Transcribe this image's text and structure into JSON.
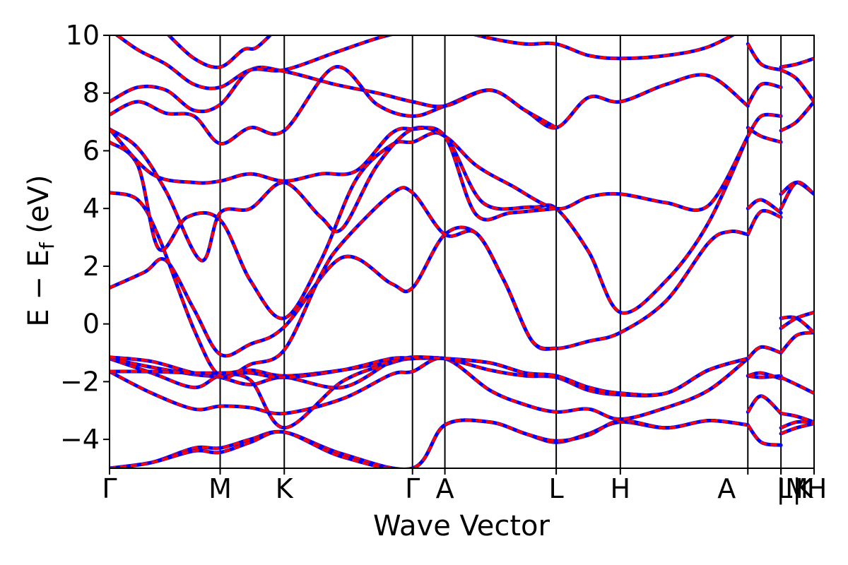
{
  "chart_data": {
    "type": "line",
    "xlabel": "Wave Vector",
    "ylabel_main": "E − E",
    "ylabel_sub": "f",
    "ylabel_unit": " (eV)",
    "ylim": [
      -5,
      10
    ],
    "yticks": [
      {
        "value": 10,
        "label": "10"
      },
      {
        "value": 8,
        "label": "8"
      },
      {
        "value": 6,
        "label": "6"
      },
      {
        "value": 4,
        "label": "4"
      },
      {
        "value": 2,
        "label": "2"
      },
      {
        "value": 0,
        "label": "0"
      },
      {
        "value": -2,
        "label": "−2"
      },
      {
        "value": -4,
        "label": "−4"
      }
    ],
    "xlim": [
      0,
      1000
    ],
    "kpoints": [
      {
        "x": 0,
        "label": "Γ"
      },
      {
        "x": 157,
        "label": "M"
      },
      {
        "x": 248,
        "label": "K"
      },
      {
        "x": 430,
        "label": "Γ"
      },
      {
        "x": 476,
        "label": "A"
      },
      {
        "x": 634,
        "label": "L"
      },
      {
        "x": 725,
        "label": "H"
      },
      {
        "x": 906,
        "label": "A"
      },
      {
        "x": 953,
        "label": "|M"
      },
      {
        "x": 953,
        "label": "L|"
      },
      {
        "x": 1000,
        "label": "K"
      },
      {
        "x": 1000,
        "label": "H"
      }
    ],
    "line_colors": {
      "series_a": "#ff0000",
      "series_b": "#0000ff",
      "frame": "#000000"
    },
    "bands": [
      [
        [
          0,
          -5.0
        ],
        [
          60,
          -4.8
        ],
        [
          120,
          -4.3
        ],
        [
          157,
          -4.3
        ],
        [
          200,
          -4.0
        ],
        [
          248,
          -3.75
        ],
        [
          330,
          -4.5
        ],
        [
          430,
          -5.0
        ],
        [
          476,
          -3.5
        ],
        [
          540,
          -3.4
        ],
        [
          590,
          -3.8
        ],
        [
          634,
          -4.1
        ],
        [
          680,
          -3.8
        ],
        [
          725,
          -3.4
        ],
        [
          790,
          -3.6
        ],
        [
          850,
          -3.35
        ],
        [
          906,
          -3.5
        ]
      ],
      [
        [
          0,
          -5.0
        ],
        [
          60,
          -4.8
        ],
        [
          120,
          -4.4
        ],
        [
          157,
          -4.45
        ],
        [
          200,
          -4.1
        ],
        [
          248,
          -3.75
        ],
        [
          330,
          -4.6
        ],
        [
          430,
          -5.0
        ],
        [
          476,
          -3.5
        ],
        [
          540,
          -3.4
        ],
        [
          590,
          -3.8
        ],
        [
          634,
          -4.05
        ],
        [
          680,
          -3.85
        ],
        [
          725,
          -3.35
        ],
        [
          790,
          -3.6
        ],
        [
          850,
          -3.35
        ],
        [
          906,
          -3.5
        ]
      ],
      [
        [
          0,
          -1.65
        ],
        [
          60,
          -2.4
        ],
        [
          120,
          -2.95
        ],
        [
          157,
          -2.85
        ],
        [
          200,
          -2.9
        ],
        [
          248,
          -3.1
        ],
        [
          330,
          -2.6
        ],
        [
          400,
          -1.75
        ],
        [
          430,
          -1.65
        ],
        [
          476,
          -1.2
        ],
        [
          540,
          -2.3
        ],
        [
          590,
          -2.8
        ],
        [
          634,
          -3.05
        ],
        [
          680,
          -2.95
        ],
        [
          725,
          -3.3
        ],
        [
          790,
          -2.9
        ],
        [
          850,
          -2.3
        ],
        [
          906,
          -1.2
        ]
      ],
      [
        [
          0,
          -1.2
        ],
        [
          60,
          -1.7
        ],
        [
          120,
          -2.2
        ],
        [
          157,
          -1.8
        ],
        [
          200,
          -1.95
        ],
        [
          248,
          -3.6
        ],
        [
          330,
          -2.0
        ],
        [
          400,
          -1.35
        ],
        [
          430,
          -1.2
        ],
        [
          476,
          -1.2
        ],
        [
          540,
          -1.6
        ],
        [
          590,
          -1.8
        ],
        [
          634,
          -1.85
        ],
        [
          680,
          -2.3
        ],
        [
          725,
          -2.45
        ],
        [
          790,
          -2.4
        ],
        [
          850,
          -1.6
        ],
        [
          906,
          -1.2
        ]
      ],
      [
        [
          0,
          -1.2
        ],
        [
          60,
          -1.5
        ],
        [
          120,
          -1.75
        ],
        [
          157,
          -1.85
        ],
        [
          200,
          -2.1
        ],
        [
          248,
          -1.85
        ],
        [
          330,
          -2.2
        ],
        [
          400,
          -1.3
        ],
        [
          430,
          -1.2
        ],
        [
          476,
          -1.2
        ],
        [
          540,
          -1.35
        ],
        [
          590,
          -1.7
        ],
        [
          634,
          -1.8
        ],
        [
          680,
          -2.2
        ],
        [
          725,
          -2.4
        ],
        [
          790,
          -2.4
        ],
        [
          850,
          -1.6
        ],
        [
          906,
          -1.2
        ]
      ],
      [
        [
          0,
          -1.15
        ],
        [
          60,
          -1.3
        ],
        [
          120,
          -1.7
        ],
        [
          157,
          -1.75
        ],
        [
          200,
          -1.6
        ],
        [
          248,
          -1.8
        ],
        [
          330,
          -1.6
        ],
        [
          400,
          -1.3
        ],
        [
          430,
          -1.15
        ],
        [
          476,
          -1.2
        ],
        [
          540,
          -1.35
        ],
        [
          590,
          -1.7
        ],
        [
          634,
          -1.8
        ],
        [
          680,
          -2.2
        ],
        [
          725,
          -2.4
        ],
        [
          790,
          -2.4
        ],
        [
          850,
          -1.6
        ],
        [
          906,
          -1.2
        ]
      ],
      [
        [
          0,
          -1.65
        ],
        [
          60,
          -1.65
        ],
        [
          120,
          -1.7
        ],
        [
          157,
          -1.7
        ],
        [
          200,
          -1.7
        ],
        [
          248,
          -1.85
        ],
        [
          330,
          -1.6
        ],
        [
          400,
          -1.2
        ],
        [
          430,
          -1.2
        ]
      ],
      [
        [
          0,
          1.25
        ],
        [
          50,
          1.8
        ],
        [
          80,
          2.2
        ],
        [
          120,
          0.5
        ],
        [
          157,
          -1.05
        ],
        [
          200,
          -0.7
        ],
        [
          248,
          -0.1
        ],
        [
          330,
          2.3
        ],
        [
          400,
          1.4
        ],
        [
          430,
          1.25
        ],
        [
          476,
          3.1
        ],
        [
          520,
          3.15
        ],
        [
          560,
          1.5
        ],
        [
          600,
          -0.6
        ],
        [
          634,
          -0.85
        ],
        [
          680,
          -0.6
        ],
        [
          725,
          -0.3
        ],
        [
          790,
          0.8
        ],
        [
          850,
          2.8
        ],
        [
          880,
          3.2
        ],
        [
          906,
          3.1
        ]
      ],
      [
        [
          0,
          4.55
        ],
        [
          40,
          4.3
        ],
        [
          70,
          3.0
        ],
        [
          120,
          -0.2
        ],
        [
          157,
          -1.8
        ],
        [
          200,
          -1.4
        ],
        [
          248,
          -0.9
        ],
        [
          300,
          1.7
        ],
        [
          330,
          2.8
        ],
        [
          400,
          4.5
        ],
        [
          430,
          4.55
        ],
        [
          476,
          3.1
        ],
        [
          520,
          3.15
        ],
        [
          560,
          1.5
        ],
        [
          600,
          -0.6
        ],
        [
          634,
          -0.85
        ]
      ],
      [
        [
          0,
          6.3
        ],
        [
          40,
          5.5
        ],
        [
          70,
          2.6
        ],
        [
          110,
          3.7
        ],
        [
          157,
          3.6
        ],
        [
          200,
          1.5
        ],
        [
          248,
          0.2
        ],
        [
          300,
          2.2
        ],
        [
          350,
          5.0
        ],
        [
          400,
          6.2
        ],
        [
          430,
          6.3
        ],
        [
          476,
          6.5
        ],
        [
          530,
          4.2
        ],
        [
          600,
          4.05
        ],
        [
          634,
          4.0
        ],
        [
          680,
          2.5
        ],
        [
          725,
          0.4
        ],
        [
          790,
          1.5
        ],
        [
          850,
          3.5
        ],
        [
          906,
          6.5
        ]
      ],
      [
        [
          0,
          6.75
        ],
        [
          40,
          6.1
        ],
        [
          80,
          4.6
        ],
        [
          130,
          2.2
        ],
        [
          157,
          3.85
        ],
        [
          200,
          4.0
        ],
        [
          248,
          4.9
        ],
        [
          300,
          3.7
        ],
        [
          330,
          3.3
        ],
        [
          380,
          5.5
        ],
        [
          430,
          6.75
        ],
        [
          476,
          6.5
        ],
        [
          520,
          5.5
        ],
        [
          570,
          4.8
        ],
        [
          634,
          4.0
        ],
        [
          680,
          4.4
        ],
        [
          725,
          4.5
        ],
        [
          790,
          4.2
        ],
        [
          850,
          4.1
        ],
        [
          906,
          6.5
        ]
      ],
      [
        [
          0,
          6.75
        ],
        [
          60,
          5.2
        ],
        [
          120,
          4.9
        ],
        [
          157,
          4.95
        ],
        [
          200,
          5.2
        ],
        [
          248,
          4.95
        ],
        [
          300,
          5.2
        ],
        [
          350,
          5.3
        ],
        [
          400,
          6.6
        ],
        [
          430,
          6.75
        ],
        [
          476,
          6.5
        ],
        [
          520,
          3.8
        ],
        [
          570,
          3.85
        ],
        [
          634,
          4.0
        ]
      ],
      [
        [
          0,
          7.25
        ],
        [
          40,
          7.7
        ],
        [
          80,
          7.3
        ],
        [
          120,
          7.2
        ],
        [
          157,
          6.25
        ],
        [
          200,
          6.8
        ],
        [
          248,
          6.7
        ],
        [
          320,
          8.9
        ],
        [
          380,
          7.6
        ],
        [
          430,
          7.2
        ],
        [
          476,
          7.55
        ],
        [
          540,
          8.1
        ],
        [
          590,
          7.4
        ],
        [
          634,
          6.8
        ],
        [
          680,
          7.85
        ],
        [
          725,
          7.7
        ],
        [
          790,
          8.3
        ],
        [
          850,
          8.6
        ],
        [
          906,
          7.55
        ]
      ],
      [
        [
          0,
          7.7
        ],
        [
          40,
          8.2
        ],
        [
          80,
          8.1
        ],
        [
          120,
          7.4
        ],
        [
          157,
          7.6
        ],
        [
          200,
          8.8
        ],
        [
          248,
          8.75
        ],
        [
          320,
          8.3
        ],
        [
          380,
          8.0
        ],
        [
          430,
          7.7
        ],
        [
          476,
          7.55
        ],
        [
          540,
          8.1
        ],
        [
          590,
          7.4
        ],
        [
          634,
          6.8
        ]
      ],
      [
        [
          0,
          10.2
        ],
        [
          40,
          9.5
        ],
        [
          80,
          9.0
        ],
        [
          120,
          8.3
        ],
        [
          157,
          8.2
        ],
        [
          200,
          8.8
        ],
        [
          248,
          8.8
        ],
        [
          320,
          9.4
        ],
        [
          380,
          9.9
        ],
        [
          430,
          10.2
        ]
      ],
      [
        [
          80,
          10.1
        ],
        [
          120,
          9.2
        ],
        [
          157,
          8.9
        ],
        [
          190,
          9.5
        ],
        [
          210,
          9.6
        ],
        [
          248,
          10.5
        ]
      ],
      [
        [
          476,
          10.3
        ],
        [
          540,
          9.9
        ],
        [
          590,
          9.7
        ],
        [
          634,
          9.7
        ],
        [
          680,
          9.3
        ],
        [
          725,
          9.2
        ],
        [
          790,
          9.3
        ],
        [
          850,
          9.6
        ],
        [
          906,
          10.3
        ]
      ],
      [
        [
          906,
          -3.5
        ],
        [
          925,
          -4.1
        ],
        [
          953,
          -4.2
        ]
      ],
      [
        [
          906,
          -3.05
        ],
        [
          925,
          -2.5
        ],
        [
          953,
          -3.1
        ]
      ],
      [
        [
          906,
          -1.8
        ],
        [
          925,
          -1.85
        ],
        [
          953,
          -1.8
        ]
      ],
      [
        [
          906,
          -1.2
        ],
        [
          925,
          -0.8
        ],
        [
          953,
          -1.0
        ]
      ],
      [
        [
          906,
          -1.8
        ],
        [
          925,
          -1.7
        ],
        [
          953,
          -1.9
        ]
      ],
      [
        [
          906,
          3.1
        ],
        [
          925,
          3.9
        ],
        [
          953,
          3.7
        ]
      ],
      [
        [
          906,
          4.0
        ],
        [
          925,
          4.3
        ],
        [
          953,
          3.85
        ]
      ],
      [
        [
          906,
          6.5
        ],
        [
          925,
          7.2
        ],
        [
          953,
          7.2
        ]
      ],
      [
        [
          906,
          9.7
        ],
        [
          925,
          9.0
        ],
        [
          953,
          8.8
        ]
      ],
      [
        [
          906,
          7.6
        ],
        [
          925,
          8.3
        ],
        [
          953,
          8.2
        ]
      ],
      [
        [
          906,
          6.8
        ],
        [
          925,
          6.5
        ],
        [
          953,
          6.3
        ]
      ],
      [
        [
          953,
          -3.6
        ],
        [
          975,
          -3.4
        ],
        [
          1000,
          -3.4
        ]
      ],
      [
        [
          953,
          -3.8
        ],
        [
          975,
          -3.6
        ],
        [
          1000,
          -3.45
        ]
      ],
      [
        [
          953,
          -3.1
        ],
        [
          975,
          -3.2
        ],
        [
          1000,
          -3.4
        ]
      ],
      [
        [
          953,
          -1.85
        ],
        [
          975,
          -2.1
        ],
        [
          1000,
          -2.4
        ]
      ],
      [
        [
          953,
          -1.0
        ],
        [
          975,
          -0.4
        ],
        [
          1000,
          -0.3
        ]
      ],
      [
        [
          953,
          0.2
        ],
        [
          975,
          0.2
        ],
        [
          1000,
          -0.3
        ]
      ],
      [
        [
          953,
          -0.15
        ],
        [
          975,
          0.2
        ],
        [
          1000,
          0.4
        ]
      ],
      [
        [
          953,
          4.5
        ],
        [
          975,
          4.9
        ],
        [
          1000,
          4.5
        ]
      ],
      [
        [
          953,
          4.0
        ],
        [
          975,
          4.9
        ],
        [
          1000,
          4.5
        ]
      ],
      [
        [
          953,
          6.7
        ],
        [
          975,
          7.0
        ],
        [
          1000,
          7.7
        ]
      ],
      [
        [
          953,
          8.8
        ],
        [
          975,
          8.5
        ],
        [
          1000,
          7.7
        ]
      ],
      [
        [
          953,
          8.9
        ],
        [
          975,
          9.0
        ],
        [
          1000,
          9.2
        ]
      ]
    ]
  }
}
